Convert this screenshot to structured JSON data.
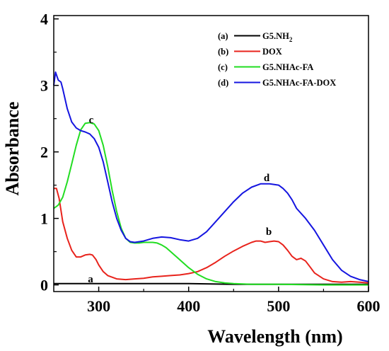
{
  "chart_data": {
    "type": "line",
    "xlabel": "Wavelength (nm)",
    "ylabel": "Absorbance",
    "xlim": [
      250,
      600
    ],
    "ylim": [
      -0.1,
      4.05
    ],
    "xticks": [
      300,
      400,
      500,
      600
    ],
    "yticks": [
      0,
      1,
      2,
      3,
      4
    ],
    "grid": false,
    "legend_position": "top-right",
    "series": [
      {
        "legend_tag": "(a)",
        "legend_name": "G5.NH",
        "legend_sub": "2",
        "curve_label": "a",
        "color": "#000000",
        "x": [
          250,
          300,
          350,
          400,
          450,
          500,
          550,
          600
        ],
        "y": [
          0.02,
          0.02,
          0.02,
          0.02,
          0.01,
          0.01,
          0.01,
          0.01
        ]
      },
      {
        "legend_tag": "(b)",
        "legend_name": "DOX",
        "curve_label": "b",
        "color": "#e8231c",
        "x": [
          250,
          253,
          256,
          260,
          265,
          270,
          275,
          280,
          285,
          290,
          293,
          297,
          300,
          305,
          310,
          320,
          330,
          340,
          350,
          360,
          370,
          380,
          390,
          400,
          410,
          420,
          430,
          440,
          450,
          460,
          470,
          475,
          480,
          485,
          490,
          495,
          500,
          505,
          510,
          515,
          520,
          525,
          530,
          535,
          540,
          550,
          560,
          570,
          580,
          590,
          600
        ],
        "y": [
          1.45,
          1.45,
          1.3,
          0.95,
          0.7,
          0.52,
          0.42,
          0.42,
          0.45,
          0.46,
          0.45,
          0.38,
          0.3,
          0.2,
          0.14,
          0.09,
          0.08,
          0.09,
          0.1,
          0.12,
          0.13,
          0.14,
          0.15,
          0.17,
          0.2,
          0.26,
          0.34,
          0.43,
          0.51,
          0.58,
          0.64,
          0.66,
          0.66,
          0.64,
          0.65,
          0.66,
          0.65,
          0.6,
          0.52,
          0.43,
          0.38,
          0.4,
          0.36,
          0.27,
          0.18,
          0.09,
          0.05,
          0.04,
          0.05,
          0.04,
          0.03
        ]
      },
      {
        "legend_tag": "(c)",
        "legend_name": "G5.NHAc-FA",
        "curve_label": "c",
        "color": "#22dd22",
        "x": [
          250,
          255,
          260,
          265,
          270,
          275,
          280,
          285,
          290,
          295,
          300,
          305,
          310,
          315,
          320,
          325,
          330,
          335,
          340,
          345,
          350,
          355,
          360,
          365,
          370,
          375,
          380,
          390,
          400,
          410,
          420,
          430,
          440,
          450,
          470,
          500,
          550,
          600
        ],
        "y": [
          1.15,
          1.2,
          1.32,
          1.55,
          1.82,
          2.1,
          2.33,
          2.43,
          2.44,
          2.42,
          2.32,
          2.1,
          1.78,
          1.42,
          1.1,
          0.85,
          0.7,
          0.64,
          0.63,
          0.63,
          0.64,
          0.64,
          0.64,
          0.63,
          0.6,
          0.56,
          0.5,
          0.38,
          0.26,
          0.16,
          0.09,
          0.05,
          0.03,
          0.02,
          0.01,
          0.01,
          0.0,
          0.0
        ]
      },
      {
        "legend_tag": "(d)",
        "legend_name": "G5.NHAc-FA-DOX",
        "curve_label": "d",
        "color": "#1515e0",
        "x": [
          250,
          252,
          255,
          258,
          260,
          265,
          270,
          275,
          280,
          285,
          290,
          295,
          300,
          305,
          310,
          315,
          320,
          325,
          330,
          335,
          340,
          350,
          360,
          370,
          380,
          390,
          400,
          410,
          420,
          430,
          440,
          450,
          460,
          470,
          480,
          490,
          500,
          505,
          510,
          515,
          520,
          530,
          540,
          550,
          560,
          570,
          580,
          590,
          600
        ],
        "y": [
          3.0,
          3.2,
          3.08,
          3.05,
          2.95,
          2.65,
          2.45,
          2.36,
          2.32,
          2.3,
          2.27,
          2.2,
          2.07,
          1.85,
          1.55,
          1.25,
          1.0,
          0.82,
          0.7,
          0.65,
          0.64,
          0.66,
          0.7,
          0.72,
          0.71,
          0.68,
          0.66,
          0.7,
          0.8,
          0.95,
          1.1,
          1.25,
          1.38,
          1.47,
          1.52,
          1.52,
          1.5,
          1.45,
          1.38,
          1.28,
          1.15,
          1.0,
          0.82,
          0.6,
          0.38,
          0.22,
          0.13,
          0.08,
          0.05
        ]
      }
    ]
  }
}
